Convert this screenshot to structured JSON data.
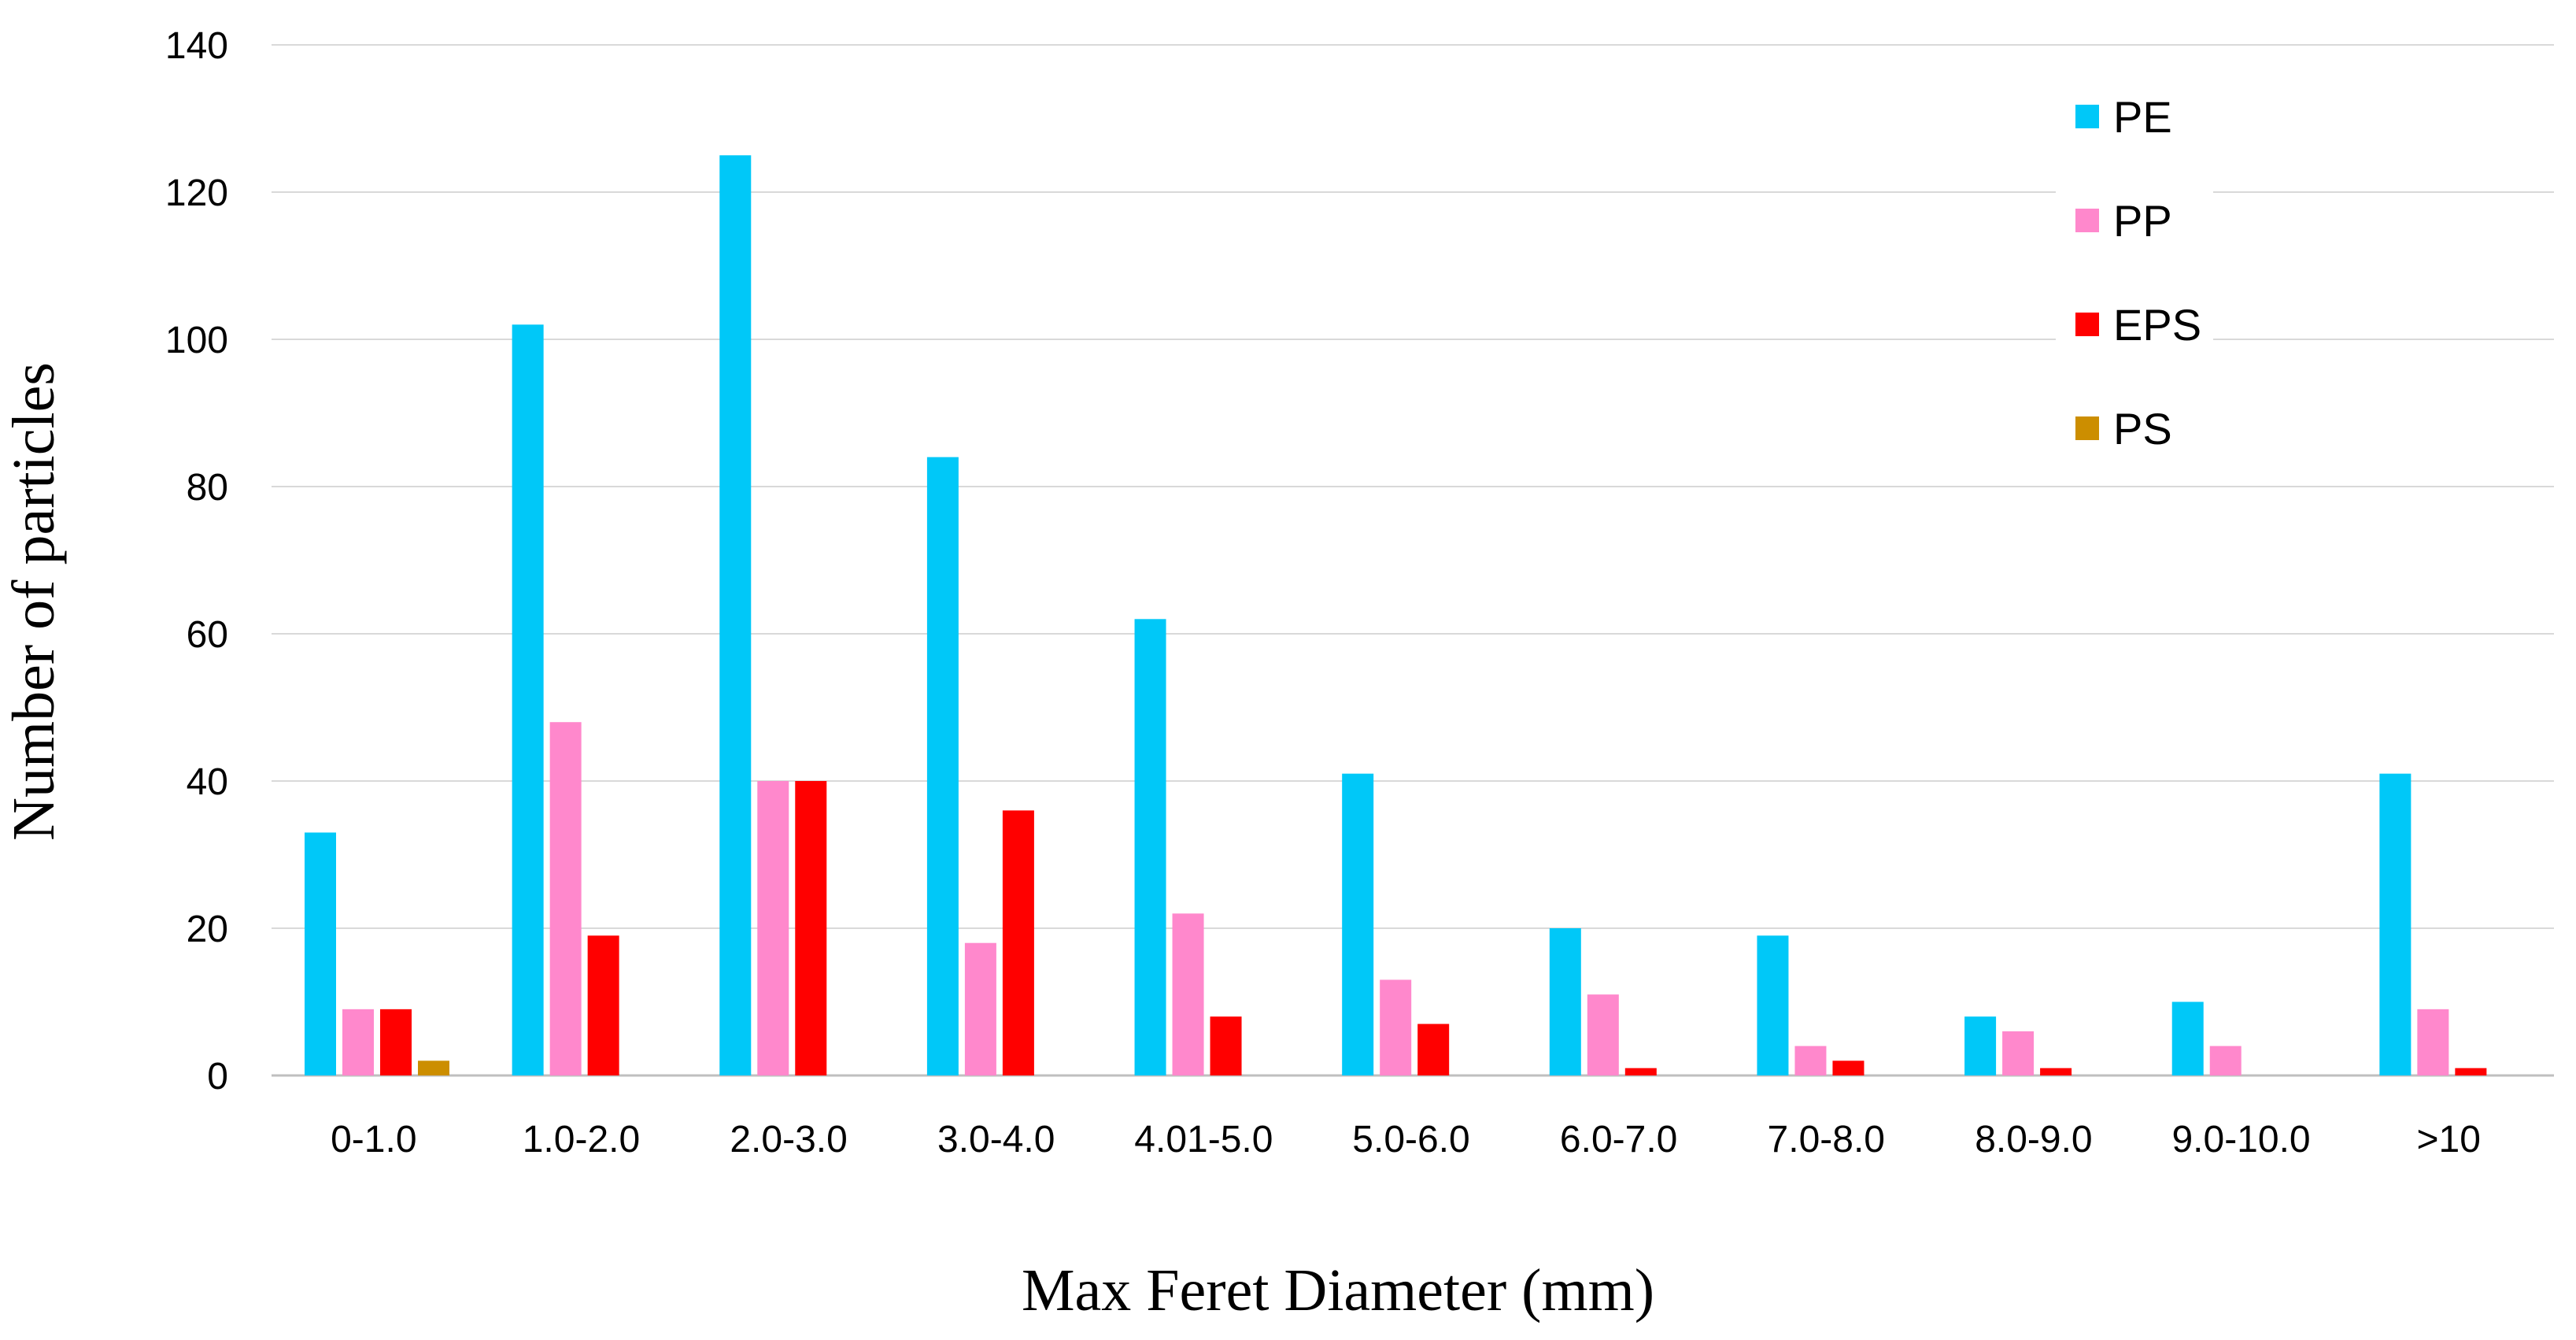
{
  "chart_data": {
    "type": "bar",
    "title": "",
    "xlabel": "Max Feret Diameter (mm)",
    "ylabel": "Number of particles",
    "ylim": [
      0,
      140
    ],
    "yticks": [
      0,
      20,
      40,
      60,
      80,
      100,
      120,
      140
    ],
    "grid": "horizontal",
    "legend_position": "top-right",
    "categories": [
      "0-1.0",
      "1.0-2.0",
      "2.0-3.0",
      "3.0-4.0",
      "4.01-5.0",
      "5.0-6.0",
      "6.0-7.0",
      "7.0-8.0",
      "8.0-9.0",
      "9.0-10.0",
      ">10"
    ],
    "series": [
      {
        "name": "PE",
        "color": "#00C8F8",
        "values": [
          33,
          102,
          125,
          84,
          62,
          41,
          20,
          19,
          8,
          10,
          41
        ]
      },
      {
        "name": "PP",
        "color": "#FF88CC",
        "values": [
          9,
          48,
          40,
          18,
          22,
          13,
          11,
          4,
          6,
          4,
          9
        ]
      },
      {
        "name": "EPS",
        "color": "#FF0000",
        "values": [
          9,
          19,
          40,
          36,
          8,
          7,
          1,
          2,
          1,
          0,
          1
        ]
      },
      {
        "name": "PS",
        "color": "#CC8E00",
        "values": [
          2,
          0,
          0,
          0,
          0,
          0,
          0,
          0,
          0,
          0,
          0
        ]
      }
    ]
  }
}
